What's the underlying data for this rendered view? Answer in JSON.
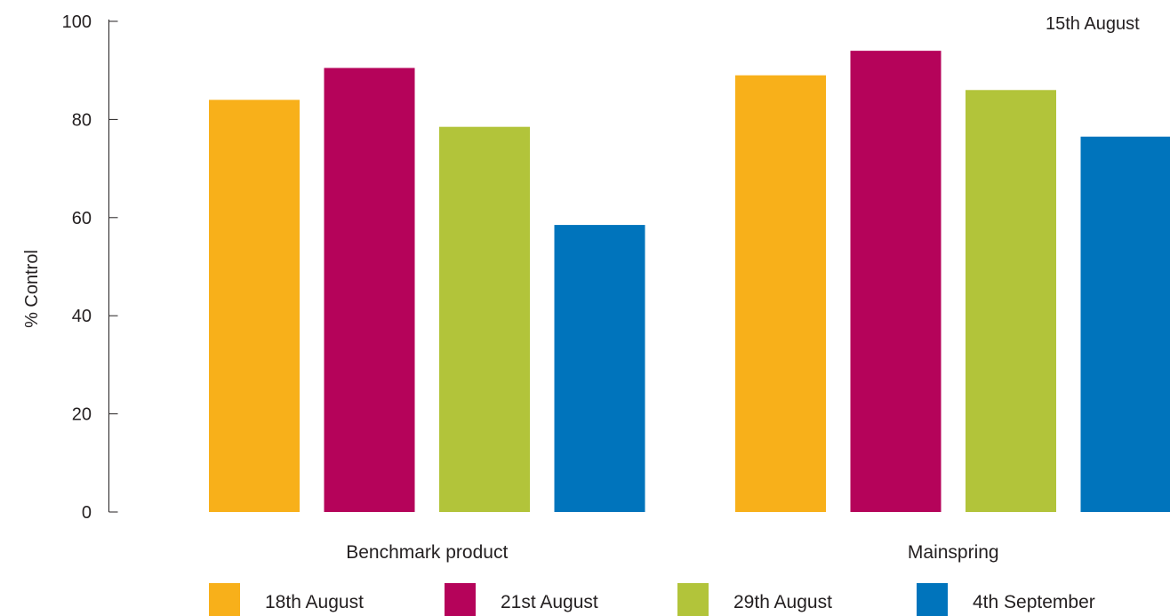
{
  "annotation": "15th August",
  "chart_data": {
    "type": "bar",
    "categories": [
      "Benchmark product",
      "Mainspring"
    ],
    "series": [
      {
        "name": "18th August",
        "color": "#f8b01a",
        "values": [
          84,
          89
        ]
      },
      {
        "name": "21st August",
        "color": "#b5035a",
        "values": [
          90.5,
          94
        ]
      },
      {
        "name": "29th August",
        "color": "#b2c43a",
        "values": [
          78.5,
          86
        ]
      },
      {
        "name": "4th September",
        "color": "#0074bc",
        "values": [
          58.5,
          76.5
        ]
      }
    ],
    "ylabel": "% Control",
    "yticks": [
      0,
      20,
      40,
      60,
      80,
      100
    ],
    "ylim": [
      0,
      100
    ],
    "grid": false,
    "legend_position": "bottom"
  }
}
